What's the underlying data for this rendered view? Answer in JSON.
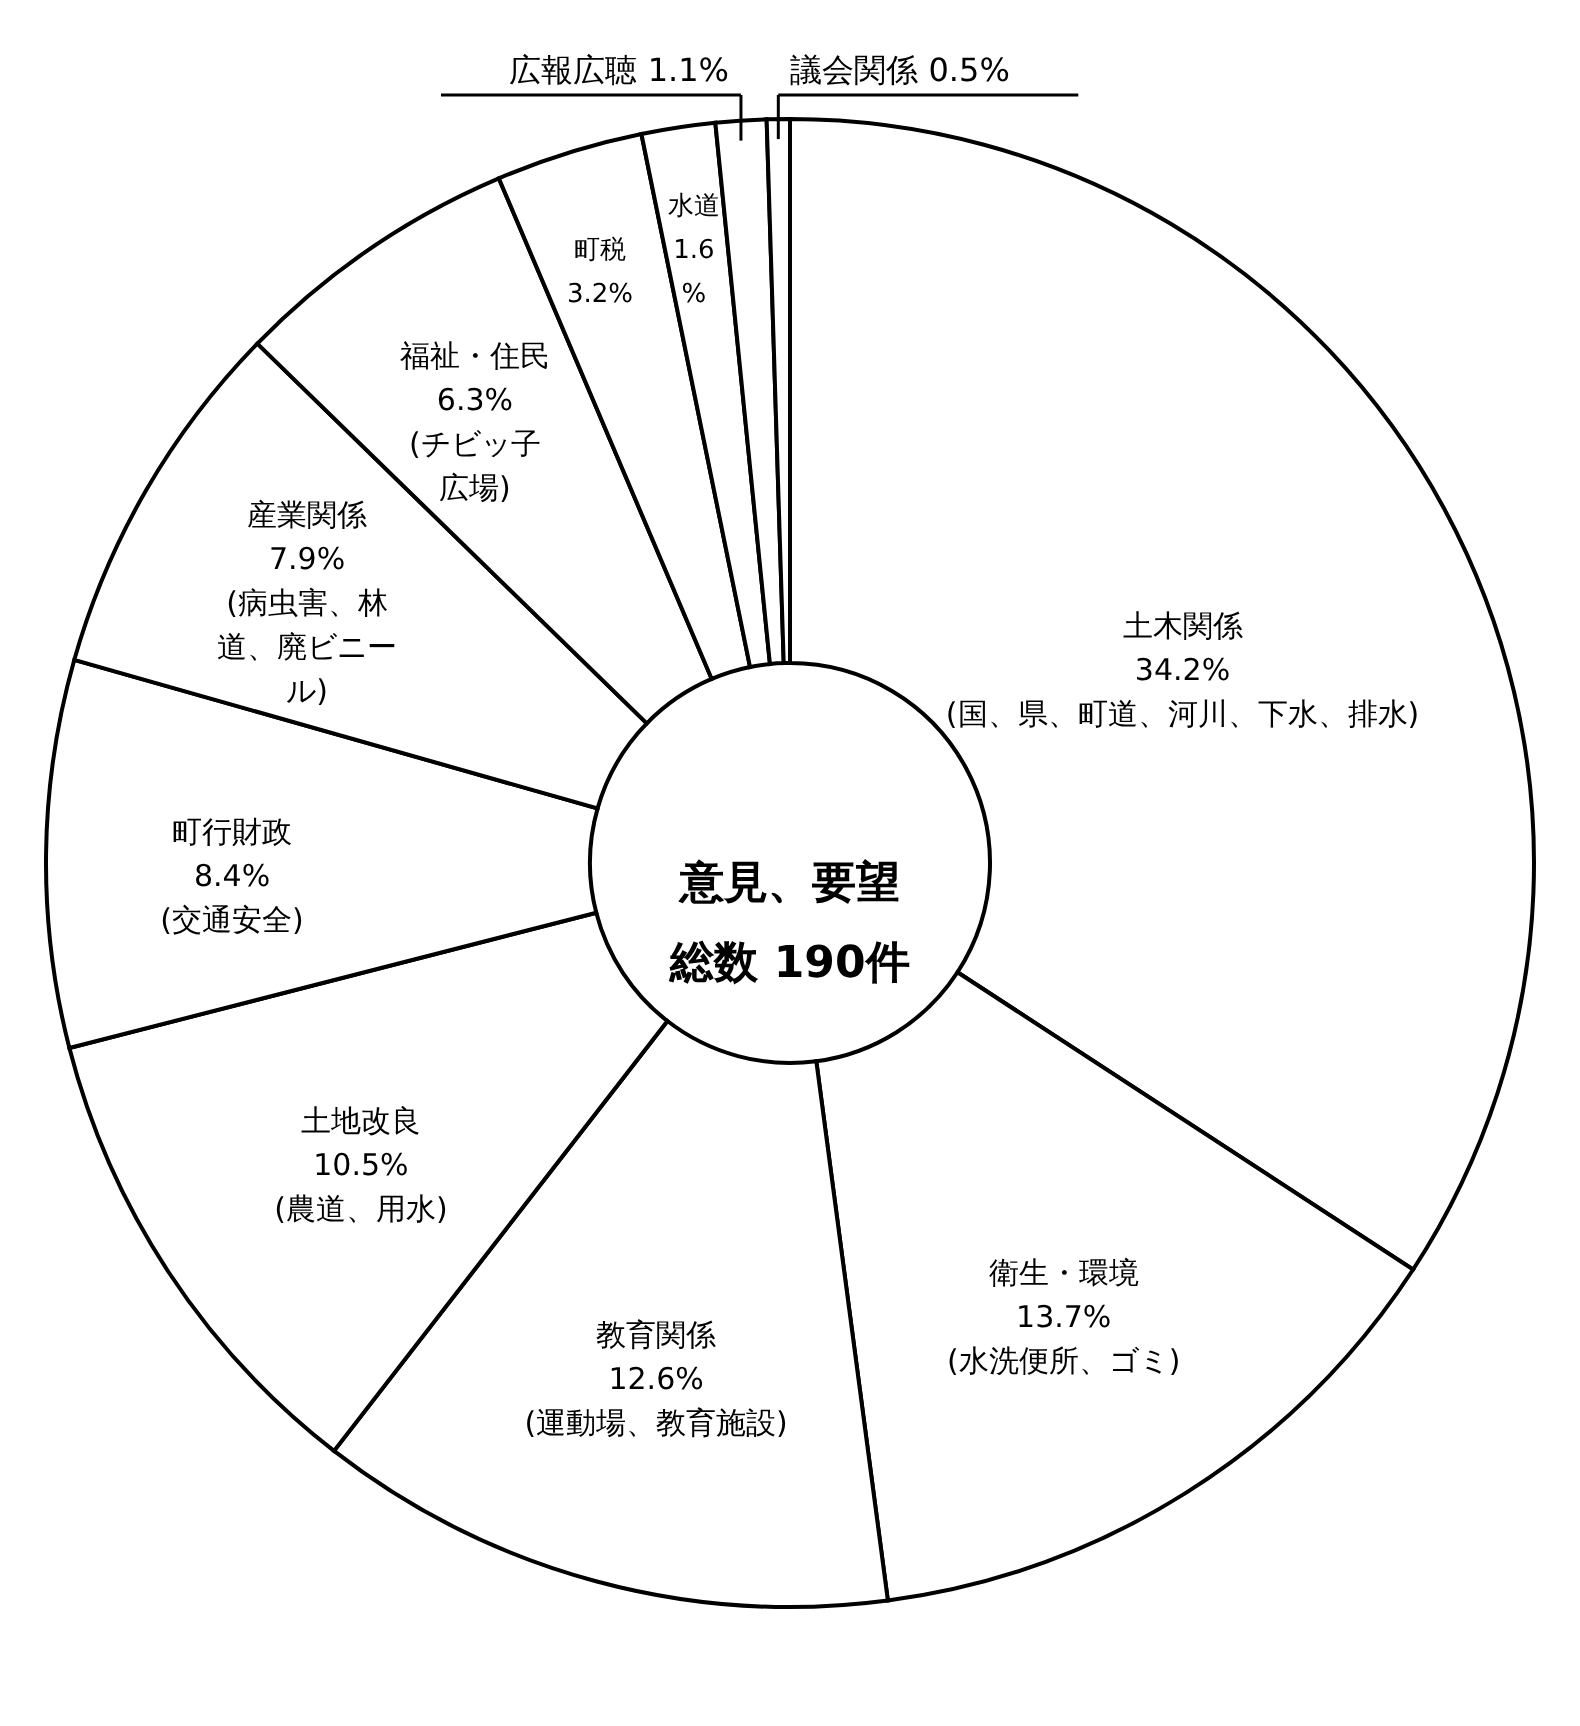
{
  "chart_data": {
    "type": "donut",
    "title": "意見、要望",
    "subtitle": "総数 190件",
    "categories": [
      "土木関係",
      "衛生・環境",
      "教育関係",
      "土地改良",
      "町行財政",
      "産業関係",
      "福祉・住民",
      "町税",
      "水道",
      "広報広聴",
      "議会関係"
    ],
    "values": [
      34.2,
      13.7,
      12.6,
      10.5,
      8.4,
      7.9,
      6.3,
      3.2,
      1.6,
      1.1,
      0.5
    ],
    "colors": [
      "#ffffff",
      "#ffffff",
      "#ffffff",
      "#ffffff",
      "#ffffff",
      "#ffffff",
      "#ffffff",
      "#ffffff",
      "#ffffff",
      "#ffffff",
      "#ffffff"
    ],
    "value_labels": [
      "34.2%",
      "13.7%",
      "12.6%",
      "10.5%",
      "8.4%",
      "7.9%",
      "6.3%",
      "3.2%",
      "1.6%",
      "1.1%",
      "0.5%"
    ],
    "annotations": [
      {
        "text": "(国、県、町道、河川、下水、排水)",
        "x": "土木関係"
      },
      {
        "text": "(水洗便所、ゴミ)",
        "x": "衛生・環境"
      },
      {
        "text": "(運動場、教育施設)",
        "x": "教育関係"
      },
      {
        "text": "(農道、用水)",
        "x": "土地改良"
      },
      {
        "text": "(交通安全)",
        "x": "町行財政"
      },
      {
        "text": "(病虫害、林道、廃ビニール)",
        "x": "産業関係"
      },
      {
        "text": "(チビッ子広場)",
        "x": "福祉・住民"
      }
    ]
  }
}
